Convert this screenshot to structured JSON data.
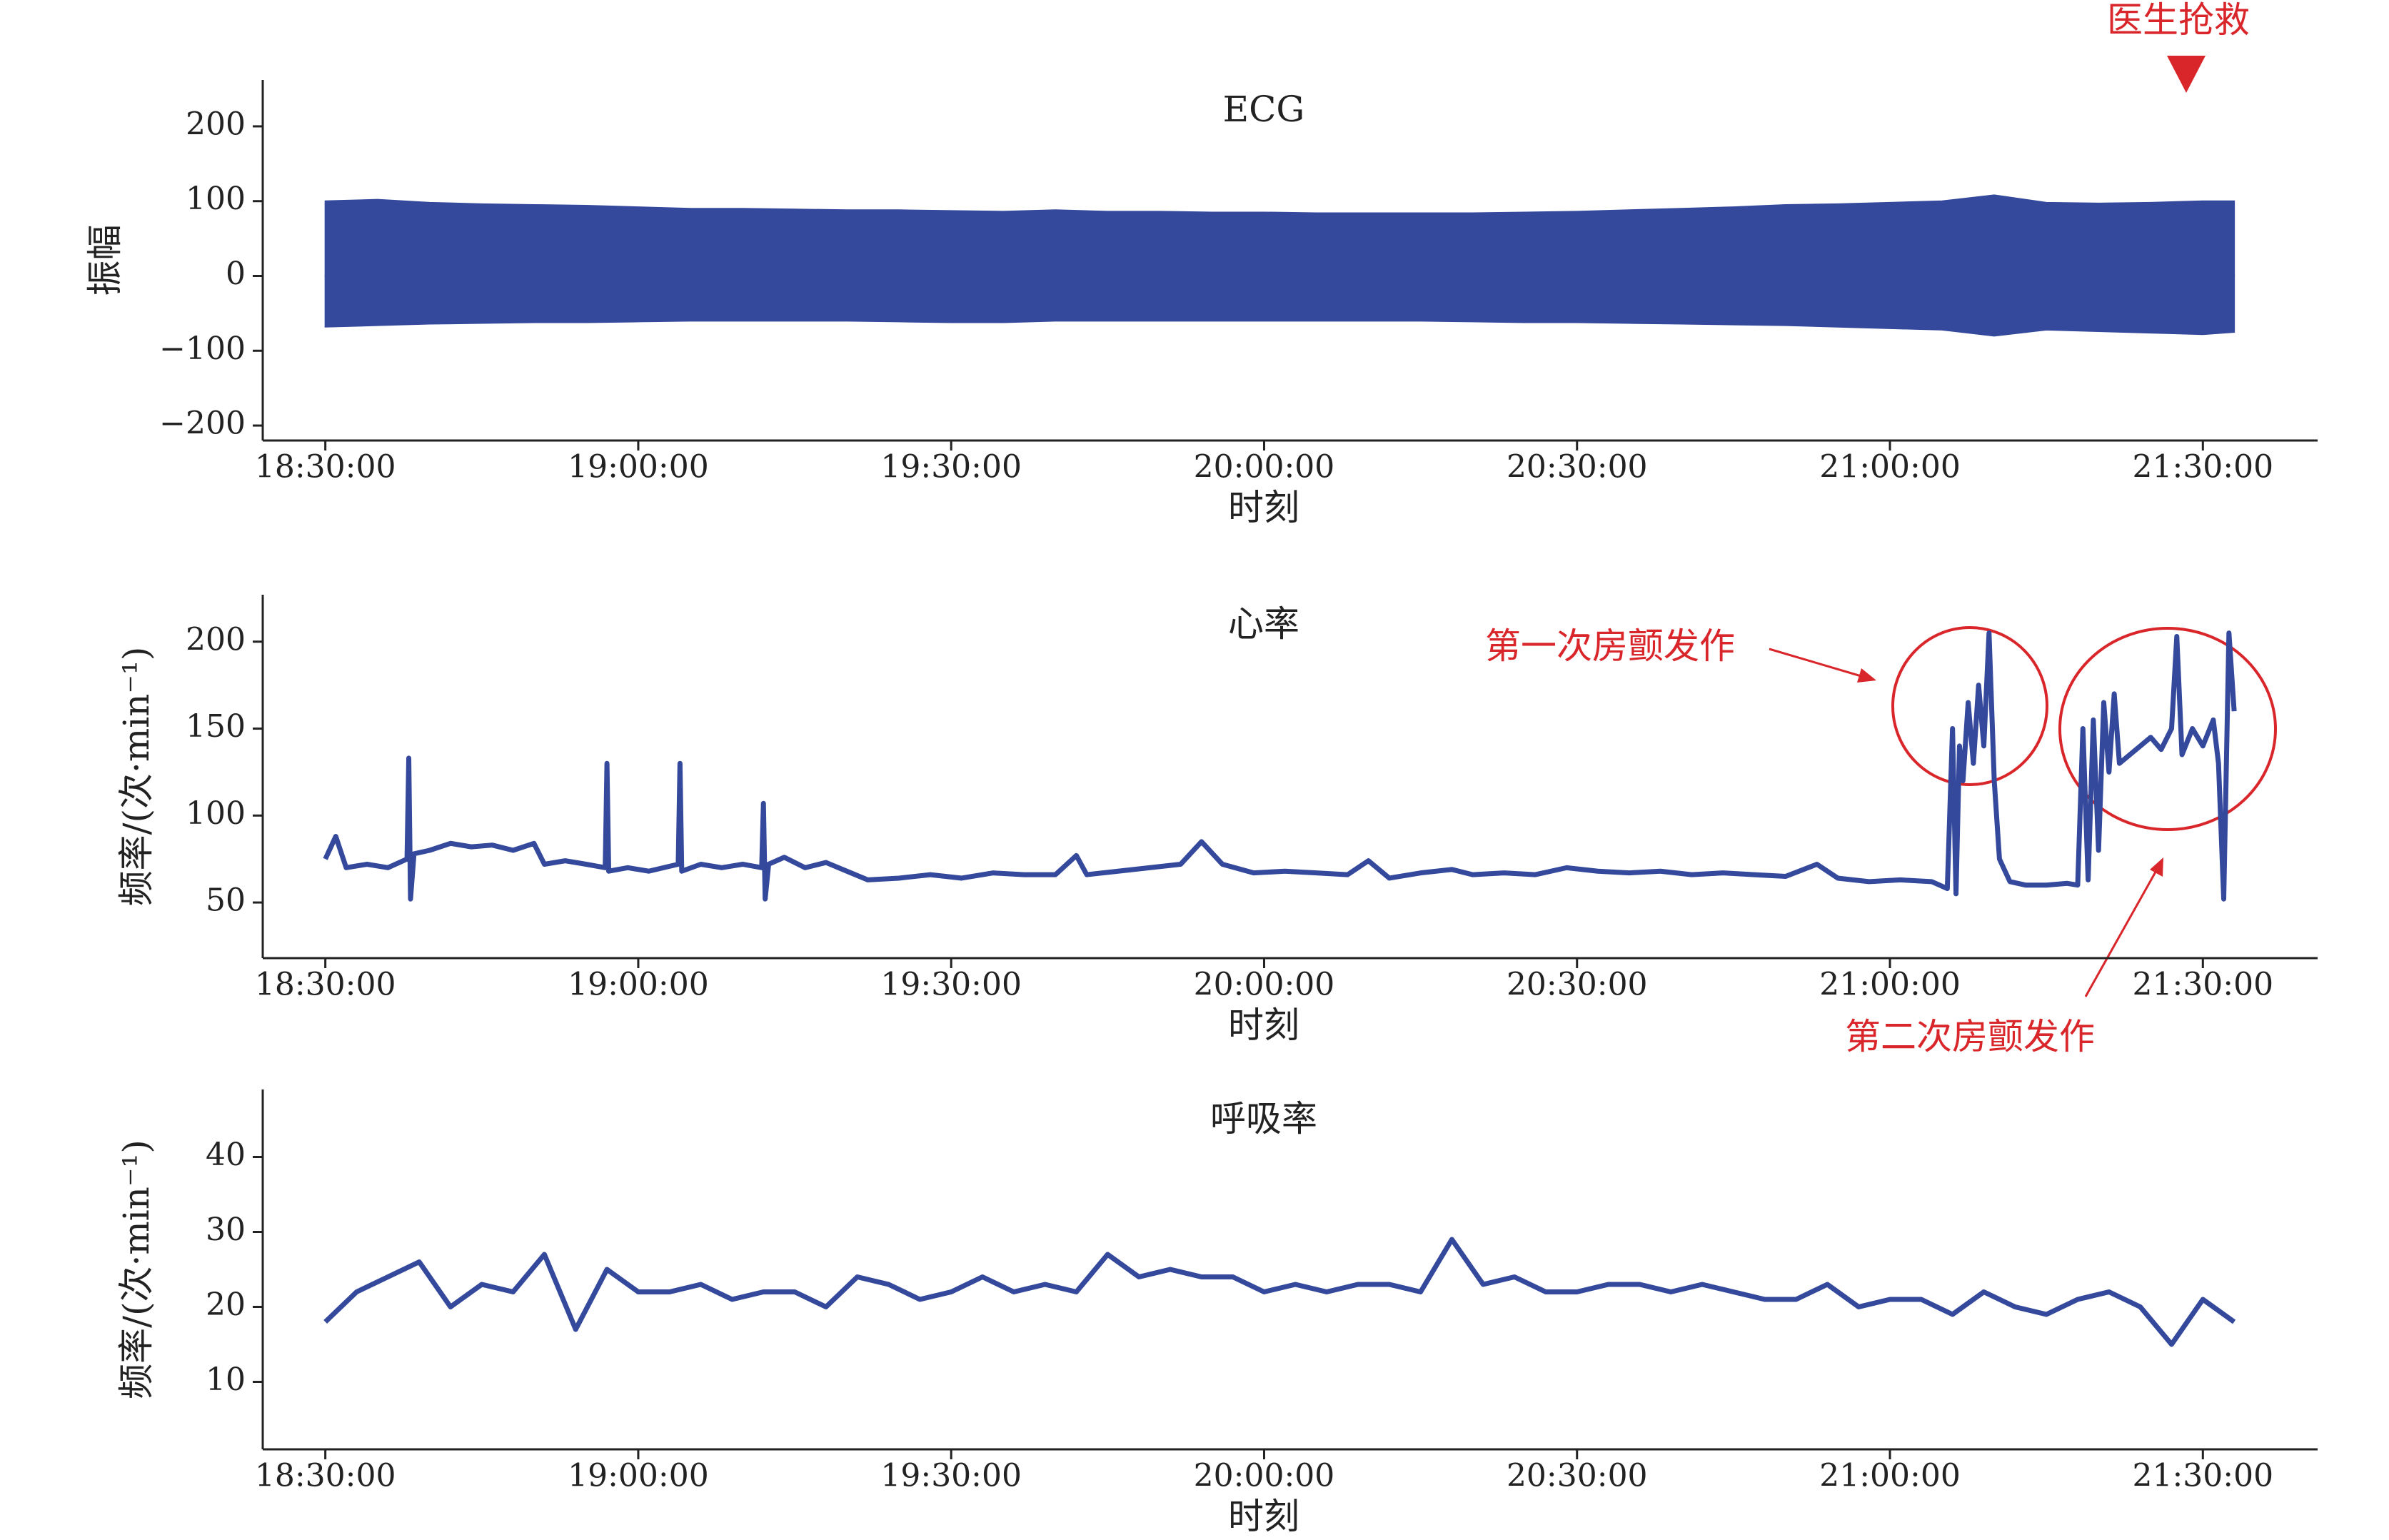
{
  "chart_data": [
    {
      "type": "area",
      "title": "ECG",
      "x_label": "时刻",
      "y_label": "振幅",
      "color": "#34499c",
      "annotations": [
        "医生抢救"
      ],
      "xlim": [
        "18:24:00",
        "21:41:00"
      ],
      "xticks": [
        "18:30:00",
        "19:00:00",
        "19:30:00",
        "20:00:00",
        "20:30:00",
        "21:00:00",
        "21:30:00"
      ],
      "ylim": [
        -220,
        262
      ],
      "yticks": [
        {
          "value": -200,
          "label": "−200"
        },
        {
          "value": -100,
          "label": "−100"
        },
        0,
        100,
        200
      ],
      "x": [
        "18:30:00",
        "18:35:00",
        "18:40:00",
        "18:45:00",
        "18:50:00",
        "18:55:00",
        "19:00:00",
        "19:05:00",
        "19:10:00",
        "19:15:00",
        "19:20:00",
        "19:25:00",
        "19:30:00",
        "19:35:00",
        "19:40:00",
        "19:45:00",
        "19:50:00",
        "19:55:00",
        "20:00:00",
        "20:05:00",
        "20:10:00",
        "20:15:00",
        "20:20:00",
        "20:25:00",
        "20:30:00",
        "20:35:00",
        "20:40:00",
        "20:45:00",
        "20:50:00",
        "20:55:00",
        "21:00:00",
        "21:05:00",
        "21:10:00",
        "21:15:00",
        "21:20:00",
        "21:25:00",
        "21:30:00",
        "21:33:00"
      ],
      "series": [
        {
          "values": [
            100,
            102,
            98,
            96,
            95,
            94,
            92,
            90,
            90,
            89,
            88,
            88,
            87,
            86,
            88,
            86,
            86,
            85,
            85,
            84,
            84,
            84,
            84,
            85,
            86,
            88,
            90,
            92,
            95,
            96,
            98,
            100,
            108,
            98,
            97,
            98,
            100,
            100
          ]
        },
        {
          "values": [
            -68,
            -66,
            -64,
            -63,
            -62,
            -62,
            -61,
            -60,
            -60,
            -60,
            -60,
            -61,
            -62,
            -62,
            -60,
            -60,
            -60,
            -60,
            -60,
            -60,
            -60,
            -60,
            -61,
            -62,
            -62,
            -63,
            -64,
            -65,
            -66,
            -68,
            -70,
            -72,
            -80,
            -72,
            -74,
            -76,
            -78,
            -75
          ]
        }
      ]
    },
    {
      "type": "line",
      "title": "心率",
      "x_label": "时刻",
      "y_label": "频率/(次·min⁻¹)",
      "color": "#34499c",
      "annotations": [
        "第一次房颤发作",
        "第二次房颤发作"
      ],
      "xlim": [
        "18:24:00",
        "21:41:00"
      ],
      "xticks": [
        "18:30:00",
        "19:00:00",
        "19:30:00",
        "20:00:00",
        "20:30:00",
        "21:00:00",
        "21:30:00"
      ],
      "ylim": [
        18,
        227
      ],
      "yticks": [
        50,
        100,
        150,
        200
      ],
      "x": [
        "18:30:00",
        "18:31:00",
        "18:32:00",
        "18:34:00",
        "18:36:00",
        "18:37:50",
        "18:38:00",
        "18:38:10",
        "18:38:30",
        "18:40:00",
        "18:42:00",
        "18:44:00",
        "18:46:00",
        "18:48:00",
        "18:50:00",
        "18:51:00",
        "18:53:00",
        "18:55:00",
        "18:56:50",
        "18:57:00",
        "18:57:10",
        "18:59:00",
        "19:01:00",
        "19:03:50",
        "19:04:00",
        "19:04:10",
        "19:06:00",
        "19:08:00",
        "19:10:00",
        "19:11:50",
        "19:12:00",
        "19:12:10",
        "19:12:30",
        "19:14:00",
        "19:16:00",
        "19:18:00",
        "19:20:00",
        "19:22:00",
        "19:25:00",
        "19:28:00",
        "19:31:00",
        "19:34:00",
        "19:37:00",
        "19:40:00",
        "19:42:00",
        "19:43:00",
        "19:46:00",
        "19:49:00",
        "19:52:00",
        "19:54:00",
        "19:56:00",
        "19:59:00",
        "20:02:00",
        "20:05:00",
        "20:08:00",
        "20:10:00",
        "20:12:00",
        "20:15:00",
        "20:18:00",
        "20:20:00",
        "20:23:00",
        "20:26:00",
        "20:29:00",
        "20:32:00",
        "20:35:00",
        "20:38:00",
        "20:41:00",
        "20:44:00",
        "20:47:00",
        "20:50:00",
        "20:53:00",
        "20:55:00",
        "20:58:00",
        "21:01:00",
        "21:04:00",
        "21:05:30",
        "21:06:00",
        "21:06:20",
        "21:06:40",
        "21:07:00",
        "21:07:30",
        "21:08:00",
        "21:08:30",
        "21:09:00",
        "21:09:30",
        "21:10:00",
        "21:10:30",
        "21:11:30",
        "21:13:00",
        "21:15:00",
        "21:17:00",
        "21:18:00",
        "21:18:30",
        "21:19:00",
        "21:19:30",
        "21:20:00",
        "21:20:30",
        "21:21:00",
        "21:21:30",
        "21:22:00",
        "21:23:00",
        "21:24:00",
        "21:25:00",
        "21:26:00",
        "21:27:00",
        "21:27:30",
        "21:28:00",
        "21:29:00",
        "21:30:00",
        "21:31:00",
        "21:31:30",
        "21:32:00",
        "21:32:30",
        "21:33:00"
      ],
      "values": [
        75,
        88,
        70,
        72,
        70,
        75,
        133,
        52,
        78,
        80,
        84,
        82,
        83,
        80,
        84,
        72,
        74,
        72,
        70,
        130,
        68,
        70,
        68,
        72,
        130,
        68,
        72,
        70,
        72,
        70,
        107,
        52,
        72,
        76,
        70,
        73,
        68,
        63,
        64,
        66,
        64,
        67,
        66,
        66,
        77,
        66,
        68,
        70,
        72,
        85,
        72,
        67,
        68,
        67,
        66,
        74,
        64,
        67,
        69,
        66,
        67,
        66,
        70,
        68,
        67,
        68,
        66,
        67,
        66,
        65,
        72,
        64,
        62,
        63,
        62,
        58,
        150,
        55,
        140,
        120,
        165,
        130,
        175,
        140,
        205,
        120,
        75,
        62,
        60,
        60,
        61,
        60,
        150,
        63,
        155,
        80,
        165,
        125,
        170,
        130,
        135,
        140,
        145,
        138,
        150,
        203,
        135,
        150,
        140,
        155,
        130,
        52,
        205,
        160
      ]
    },
    {
      "type": "line",
      "title": "呼吸率",
      "x_label": "时刻",
      "y_label": "频率/(次·min⁻¹)",
      "color": "#34499c",
      "xlim": [
        "18:24:00",
        "21:41:00"
      ],
      "xticks": [
        "18:30:00",
        "19:00:00",
        "19:30:00",
        "20:00:00",
        "20:30:00",
        "21:00:00",
        "21:30:00"
      ],
      "ylim": [
        1,
        49
      ],
      "yticks": [
        10,
        20,
        30,
        40
      ],
      "x": [
        "18:30:00",
        "18:33:00",
        "18:36:00",
        "18:39:00",
        "18:42:00",
        "18:45:00",
        "18:48:00",
        "18:51:00",
        "18:54:00",
        "18:57:00",
        "19:00:00",
        "19:03:00",
        "19:06:00",
        "19:09:00",
        "19:12:00",
        "19:15:00",
        "19:18:00",
        "19:21:00",
        "19:24:00",
        "19:27:00",
        "19:30:00",
        "19:33:00",
        "19:36:00",
        "19:39:00",
        "19:42:00",
        "19:45:00",
        "19:48:00",
        "19:51:00",
        "19:54:00",
        "19:57:00",
        "20:00:00",
        "20:03:00",
        "20:06:00",
        "20:09:00",
        "20:12:00",
        "20:15:00",
        "20:18:00",
        "20:21:00",
        "20:24:00",
        "20:27:00",
        "20:30:00",
        "20:33:00",
        "20:36:00",
        "20:39:00",
        "20:42:00",
        "20:45:00",
        "20:48:00",
        "20:51:00",
        "20:54:00",
        "20:57:00",
        "21:00:00",
        "21:03:00",
        "21:06:00",
        "21:09:00",
        "21:12:00",
        "21:15:00",
        "21:18:00",
        "21:21:00",
        "21:24:00",
        "21:27:00",
        "21:30:00",
        "21:33:00"
      ],
      "values": [
        18,
        22,
        24,
        26,
        20,
        23,
        22,
        27,
        17,
        25,
        22,
        22,
        23,
        21,
        22,
        22,
        20,
        24,
        23,
        21,
        22,
        24,
        22,
        23,
        22,
        27,
        24,
        25,
        24,
        24,
        22,
        23,
        22,
        23,
        23,
        22,
        29,
        23,
        24,
        22,
        22,
        23,
        23,
        22,
        23,
        22,
        21,
        21,
        23,
        20,
        21,
        21,
        19,
        22,
        20,
        19,
        21,
        22,
        20,
        15,
        21,
        18
      ]
    }
  ]
}
